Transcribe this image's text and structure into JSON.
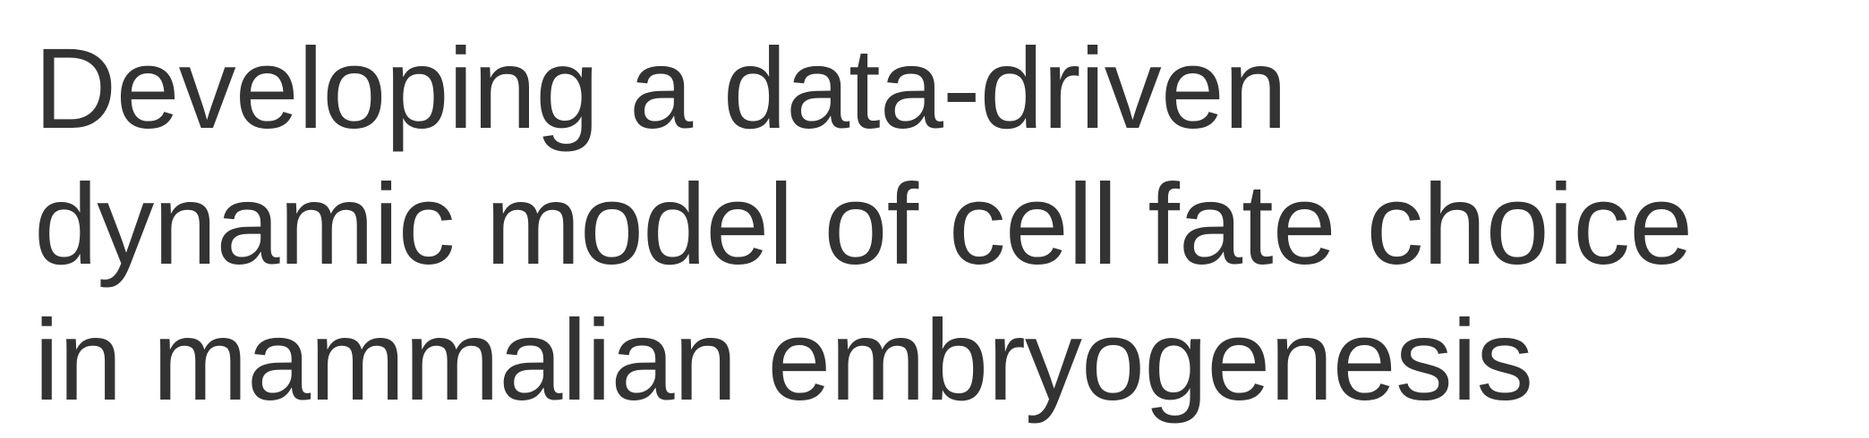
{
  "slide": {
    "title_lines": [
      "Developing a data-driven",
      "dynamic model of cell fate choice",
      "in mammalian embryogenesis"
    ]
  },
  "colors": {
    "background": "#ffffff",
    "title_text": "#333333"
  }
}
